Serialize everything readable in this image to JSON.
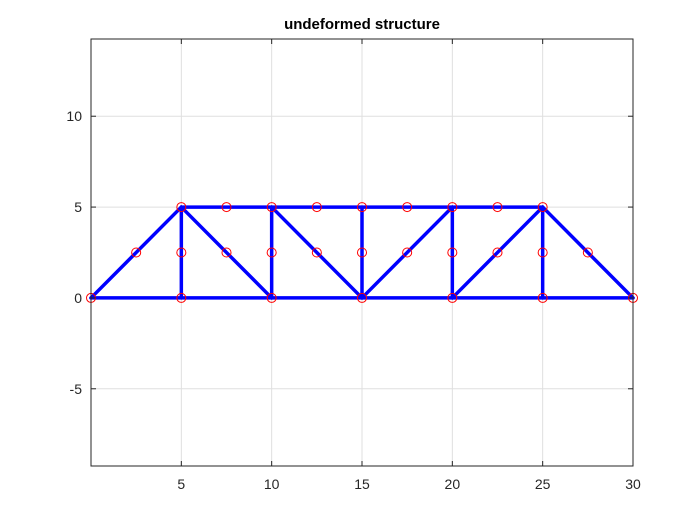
{
  "chart_data": {
    "type": "line",
    "title": "undeformed structure",
    "xlabel": "",
    "ylabel": "",
    "xlim": [
      0,
      30
    ],
    "ylim": [
      -9.25,
      14.25
    ],
    "x_ticks": [
      5,
      10,
      15,
      20,
      25,
      30
    ],
    "y_ticks": [
      -5,
      0,
      5,
      10
    ],
    "x_tick_labels": [
      "5",
      "10",
      "15",
      "20",
      "25",
      "30"
    ],
    "y_tick_labels": [
      "-5",
      "0",
      "5",
      "10"
    ],
    "grid": true,
    "legend": "none",
    "members": [
      [
        [
          0,
          0
        ],
        [
          5,
          0
        ]
      ],
      [
        [
          5,
          0
        ],
        [
          10,
          0
        ]
      ],
      [
        [
          10,
          0
        ],
        [
          15,
          0
        ]
      ],
      [
        [
          15,
          0
        ],
        [
          20,
          0
        ]
      ],
      [
        [
          20,
          0
        ],
        [
          25,
          0
        ]
      ],
      [
        [
          25,
          0
        ],
        [
          30,
          0
        ]
      ],
      [
        [
          5,
          5
        ],
        [
          10,
          5
        ]
      ],
      [
        [
          10,
          5
        ],
        [
          15,
          5
        ]
      ],
      [
        [
          15,
          5
        ],
        [
          20,
          5
        ]
      ],
      [
        [
          20,
          5
        ],
        [
          25,
          5
        ]
      ],
      [
        [
          0,
          0
        ],
        [
          5,
          5
        ]
      ],
      [
        [
          25,
          5
        ],
        [
          30,
          0
        ]
      ],
      [
        [
          5,
          0
        ],
        [
          5,
          5
        ]
      ],
      [
        [
          10,
          0
        ],
        [
          10,
          5
        ]
      ],
      [
        [
          15,
          0
        ],
        [
          15,
          5
        ]
      ],
      [
        [
          20,
          0
        ],
        [
          20,
          5
        ]
      ],
      [
        [
          25,
          0
        ],
        [
          25,
          5
        ]
      ],
      [
        [
          5,
          5
        ],
        [
          10,
          0
        ]
      ],
      [
        [
          10,
          5
        ],
        [
          15,
          0
        ]
      ],
      [
        [
          15,
          0
        ],
        [
          20,
          5
        ]
      ],
      [
        [
          20,
          0
        ],
        [
          25,
          5
        ]
      ]
    ],
    "markers": [
      [
        0,
        0
      ],
      [
        5,
        0
      ],
      [
        10,
        0
      ],
      [
        15,
        0
      ],
      [
        20,
        0
      ],
      [
        25,
        0
      ],
      [
        30,
        0
      ],
      [
        5,
        5
      ],
      [
        10,
        5
      ],
      [
        15,
        5
      ],
      [
        20,
        5
      ],
      [
        25,
        5
      ],
      [
        7.5,
        5
      ],
      [
        12.5,
        5
      ],
      [
        17.5,
        5
      ],
      [
        22.5,
        5
      ],
      [
        2.5,
        2.5
      ],
      [
        5,
        2.5
      ],
      [
        7.5,
        2.5
      ],
      [
        10,
        2.5
      ],
      [
        12.5,
        2.5
      ],
      [
        15,
        2.5
      ],
      [
        17.5,
        2.5
      ],
      [
        20,
        2.5
      ],
      [
        22.5,
        2.5
      ],
      [
        25,
        2.5
      ],
      [
        27.5,
        2.5
      ]
    ],
    "member_color": "#0000ff",
    "marker_color": "#ff0000",
    "marker_style": "open-circle"
  }
}
